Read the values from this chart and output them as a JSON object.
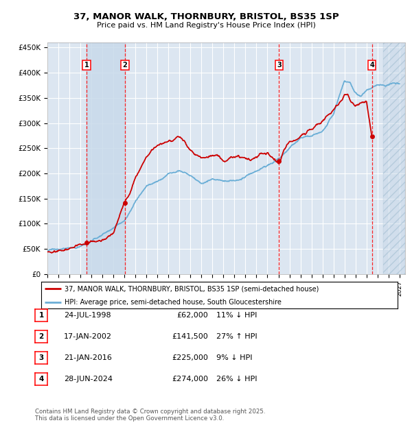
{
  "title_line1": "37, MANOR WALK, THORNBURY, BRISTOL, BS35 1SP",
  "title_line2": "Price paid vs. HM Land Registry's House Price Index (HPI)",
  "ylim": [
    0,
    460000
  ],
  "yticks": [
    0,
    50000,
    100000,
    150000,
    200000,
    250000,
    300000,
    350000,
    400000,
    450000
  ],
  "ytick_labels": [
    "£0",
    "£50K",
    "£100K",
    "£150K",
    "£200K",
    "£250K",
    "£300K",
    "£350K",
    "£400K",
    "£450K"
  ],
  "xlim_start": 1995.0,
  "xlim_end": 2027.5,
  "plot_bg_color": "#dce6f1",
  "grid_color": "#ffffff",
  "hpi_line_color": "#6aaed6",
  "price_line_color": "#cc0000",
  "shade_color": "#c8daea",
  "transactions": [
    {
      "num": 1,
      "date_label": "24-JUL-1998",
      "date_x": 1998.56,
      "price": 62000
    },
    {
      "num": 2,
      "date_label": "17-JAN-2002",
      "date_x": 2002.04,
      "price": 141500
    },
    {
      "num": 3,
      "date_label": "21-JAN-2016",
      "date_x": 2016.05,
      "price": 225000
    },
    {
      "num": 4,
      "date_label": "28-JUN-2024",
      "date_x": 2024.49,
      "price": 274000
    }
  ],
  "legend_label_red": "37, MANOR WALK, THORNBURY, BRISTOL, BS35 1SP (semi-detached house)",
  "legend_label_blue": "HPI: Average price, semi-detached house, South Gloucestershire",
  "footer_line1": "Contains HM Land Registry data © Crown copyright and database right 2025.",
  "footer_line2": "This data is licensed under the Open Government Licence v3.0.",
  "table_rows": [
    [
      "1",
      "24-JUL-1998",
      "£62,000",
      "11% ↓ HPI"
    ],
    [
      "2",
      "17-JAN-2002",
      "£141,500",
      "27% ↑ HPI"
    ],
    [
      "3",
      "21-JAN-2016",
      "£225,000",
      "9% ↓ HPI"
    ],
    [
      "4",
      "28-JUN-2024",
      "£274,000",
      "26% ↓ HPI"
    ]
  ]
}
